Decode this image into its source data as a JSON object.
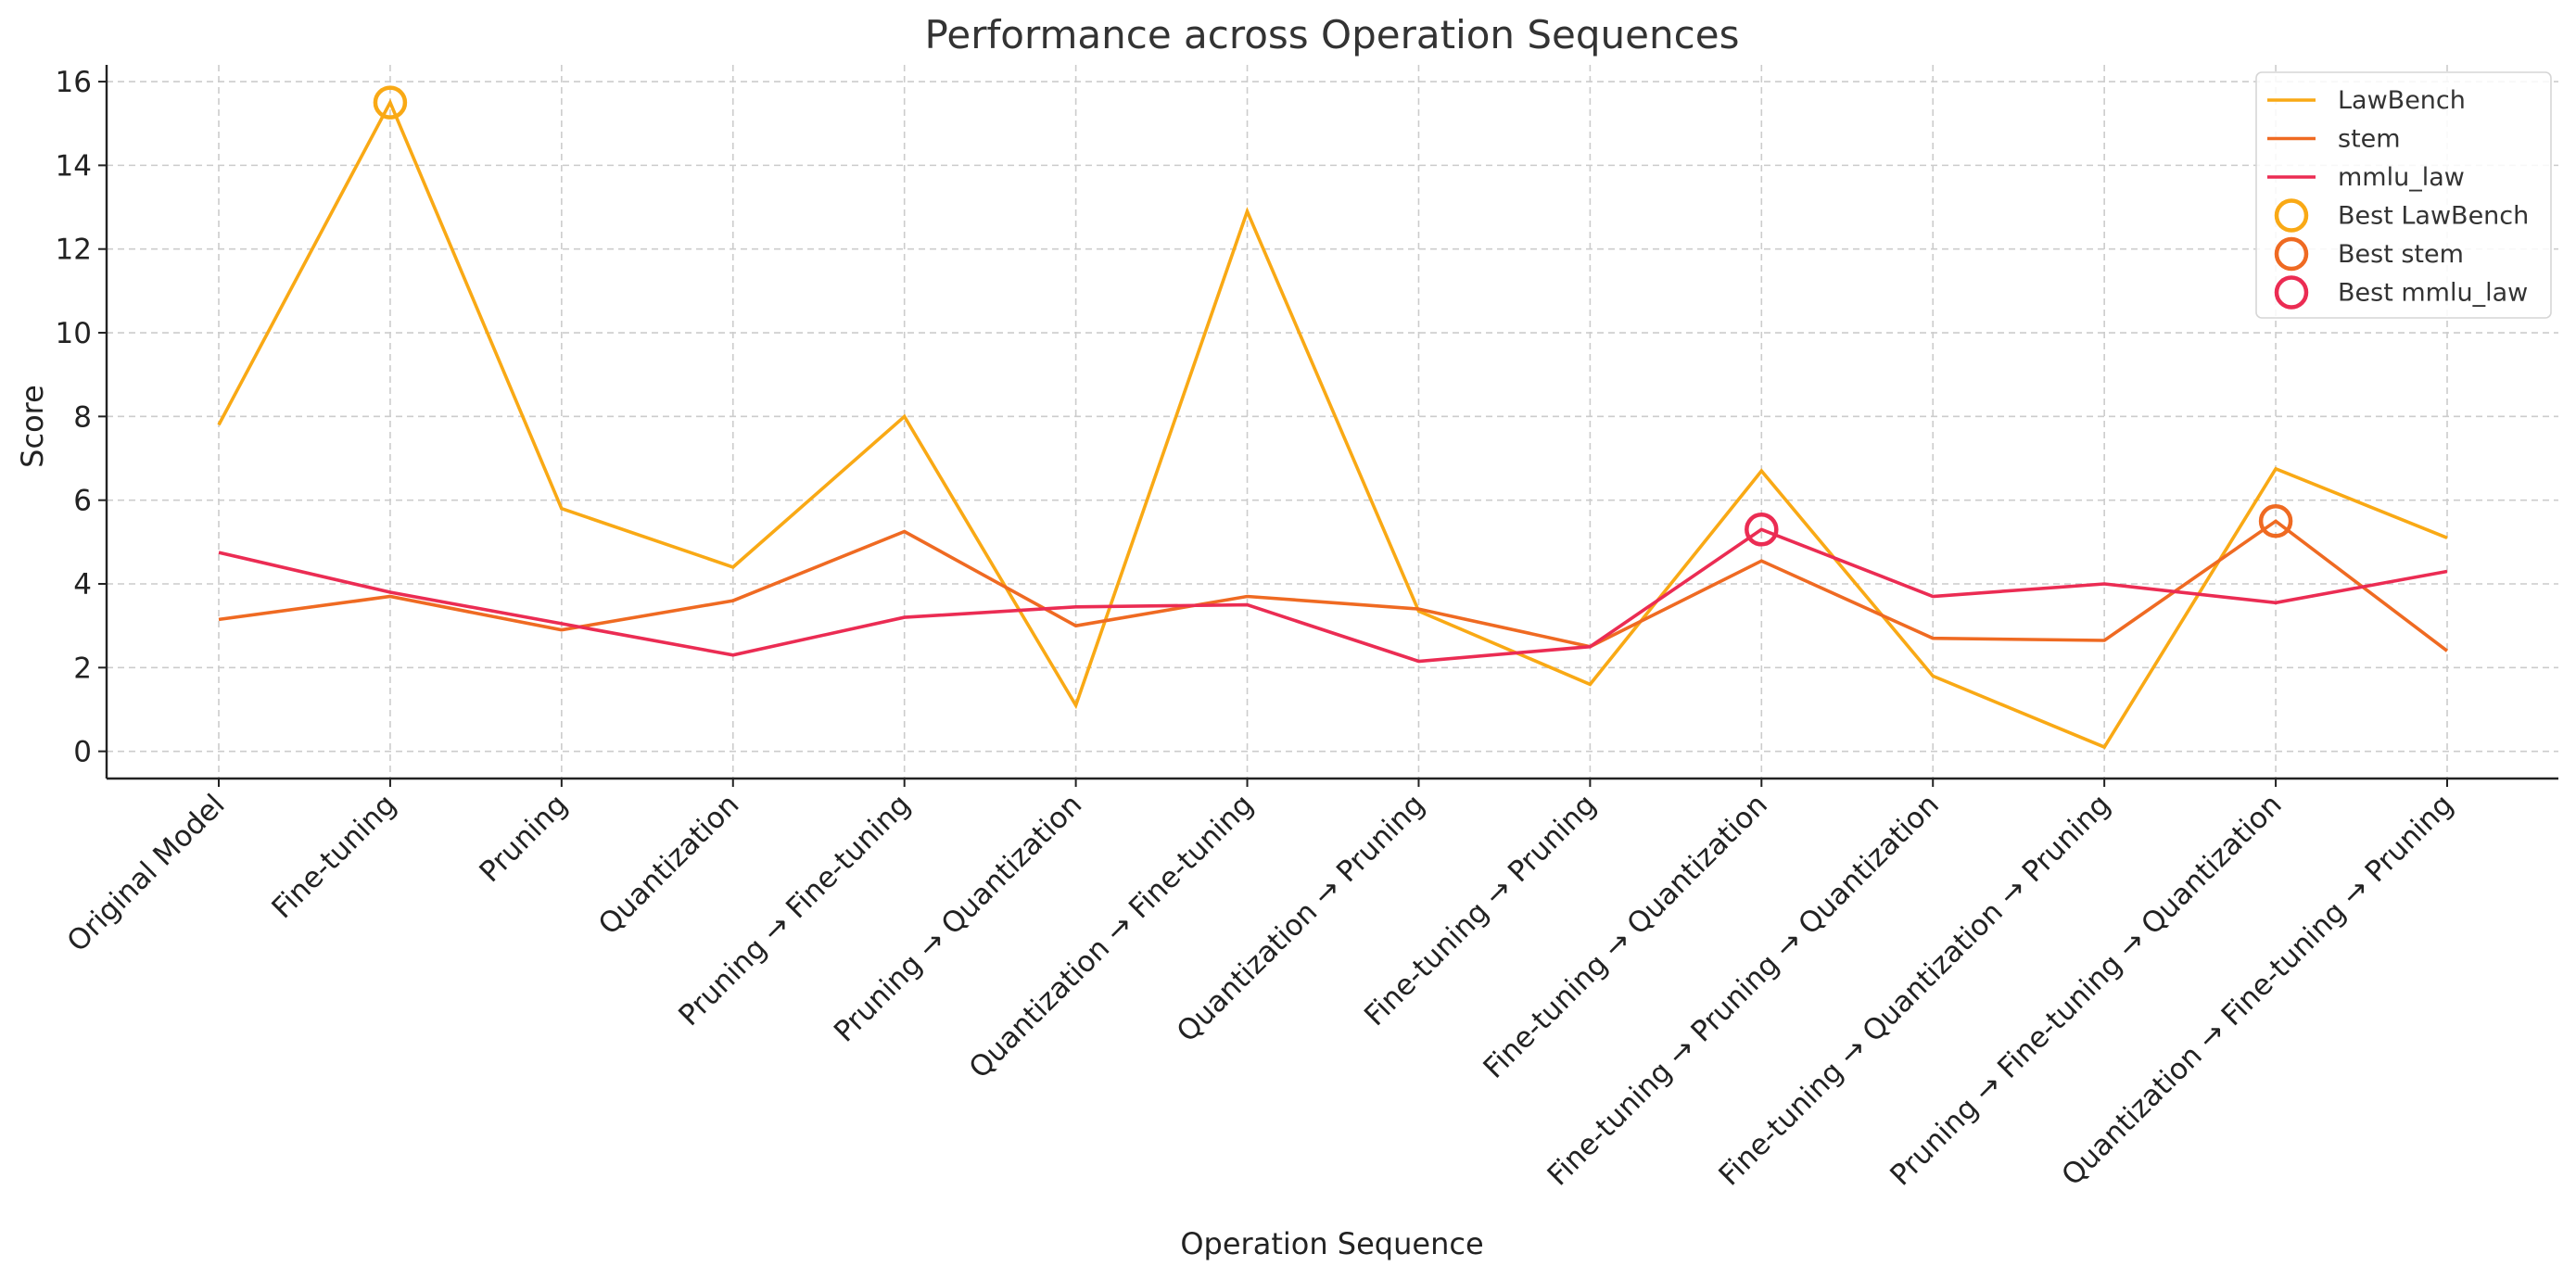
{
  "chart_data": {
    "type": "line",
    "title": "Performance across Operation Sequences",
    "xlabel": "Operation Sequence",
    "ylabel": "Score",
    "ylim": [
      -0.65,
      16.4
    ],
    "yticks": [
      0,
      2,
      4,
      6,
      8,
      10,
      12,
      14,
      16
    ],
    "grid": true,
    "legend_position": "top-right",
    "categories": [
      "Original Model",
      "Fine-tuning",
      "Pruning",
      "Quantization",
      "Pruning → Fine-tuning",
      "Pruning → Quantization",
      "Quantization → Fine-tuning",
      "Quantization → Pruning",
      "Fine-tuning → Pruning",
      "Fine-tuning → Quantization",
      "Fine-tuning → Pruning → Quantization",
      "Fine-tuning → Quantization → Pruning",
      "Pruning → Fine-tuning → Quantization",
      "Quantization → Fine-tuning → Pruning"
    ],
    "series": [
      {
        "name": "LawBench",
        "color": "#F9A915",
        "values": [
          7.8,
          15.5,
          5.8,
          4.4,
          8.0,
          1.1,
          12.9,
          3.35,
          1.6,
          6.7,
          1.8,
          0.1,
          6.75,
          5.1
        ]
      },
      {
        "name": "stem",
        "color": "#EF6A22",
        "values": [
          3.15,
          3.7,
          2.9,
          3.6,
          5.25,
          3.0,
          3.7,
          3.4,
          2.5,
          4.55,
          2.7,
          2.65,
          5.5,
          2.4
        ]
      },
      {
        "name": "mmlu_law",
        "color": "#EB2C53",
        "values": [
          4.75,
          3.8,
          3.05,
          2.3,
          3.2,
          3.45,
          3.5,
          2.15,
          2.5,
          5.3,
          3.7,
          4.0,
          3.55,
          4.3
        ]
      }
    ],
    "best_markers": [
      {
        "name": "Best LawBench",
        "series": "LawBench",
        "color": "#F9A915",
        "category_index": 1,
        "value": 15.5
      },
      {
        "name": "Best stem",
        "series": "stem",
        "color": "#EF6A22",
        "category_index": 12,
        "value": 5.5
      },
      {
        "name": "Best mmlu_law",
        "series": "mmlu_law",
        "color": "#EB2C53",
        "category_index": 9,
        "value": 5.3
      }
    ]
  }
}
